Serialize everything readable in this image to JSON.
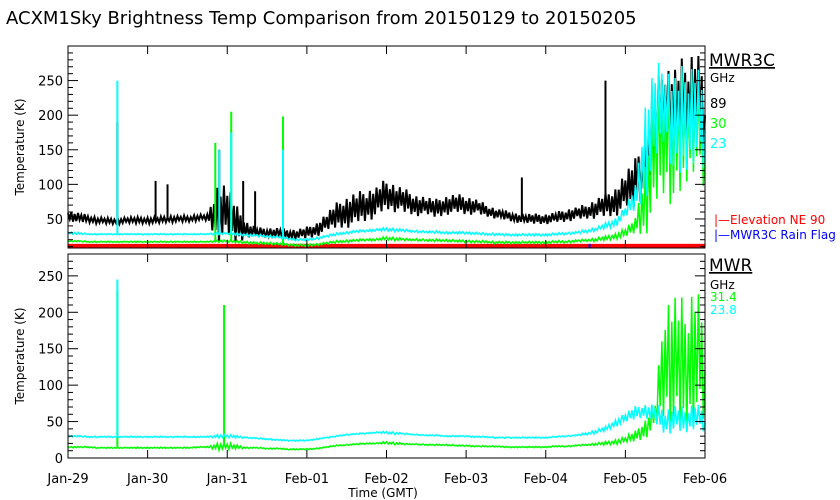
{
  "chart_data": [
    {
      "type": "line",
      "title": "ACXM1Sky Brightness Temp Comparison from 20150129 to 20150205",
      "panel": "top",
      "instrument": "MWR3C",
      "unit_label": "GHz",
      "ylabel": "Temperature (K)",
      "ylim": [
        8,
        300
      ],
      "yticks": [
        50,
        100,
        150,
        200,
        250
      ],
      "x_start_note": "x values are days since Jan-29 00:00 GMT, sampled every 3 hours",
      "x_step_days": 0.125,
      "series": [
        {
          "name": "89",
          "color": "#000000",
          "values": [
            55,
            52,
            50,
            48,
            47,
            47,
            48,
            48,
            48,
            48,
            50,
            50,
            50,
            52,
            52,
            60,
            60,
            40,
            35,
            30,
            30,
            30,
            28,
            28,
            30,
            35,
            45,
            55,
            60,
            65,
            70,
            75,
            85,
            80,
            75,
            70,
            68,
            65,
            70,
            72,
            70,
            68,
            62,
            58,
            55,
            52,
            50,
            50,
            50,
            52,
            55,
            58,
            60,
            65,
            70,
            75,
            90,
            100,
            130,
            180,
            220,
            200,
            210,
            230,
            200
          ],
          "spread": [
            8,
            8,
            6,
            5,
            5,
            5,
            5,
            5,
            5,
            5,
            5,
            5,
            5,
            5,
            5,
            50,
            45,
            30,
            12,
            8,
            8,
            8,
            8,
            8,
            10,
            12,
            15,
            20,
            25,
            25,
            25,
            25,
            25,
            22,
            20,
            18,
            15,
            15,
            15,
            15,
            15,
            12,
            10,
            8,
            8,
            8,
            8,
            8,
            8,
            8,
            10,
            10,
            12,
            15,
            20,
            25,
            30,
            40,
            50,
            70,
            60,
            80,
            80,
            80,
            80
          ],
          "spikes": [
            [
              0.62,
              190
            ],
            [
              1.1,
              105
            ],
            [
              1.25,
              100
            ],
            [
              1.9,
              150
            ],
            [
              2.2,
              105
            ],
            [
              2.35,
              90
            ],
            [
              5.7,
              110
            ],
            [
              6.75,
              250
            ]
          ]
        },
        {
          "name": "30",
          "color": "#00ff00",
          "values": [
            18,
            18,
            17,
            17,
            17,
            17,
            17,
            17,
            17,
            17,
            17,
            17,
            17,
            17,
            17,
            18,
            18,
            17,
            16,
            15,
            15,
            14,
            13,
            12,
            12,
            13,
            15,
            17,
            18,
            19,
            20,
            20,
            22,
            21,
            20,
            20,
            19,
            19,
            19,
            18,
            18,
            17,
            17,
            16,
            16,
            16,
            16,
            16,
            16,
            17,
            17,
            18,
            19,
            20,
            22,
            25,
            30,
            40,
            80,
            150,
            180,
            160,
            180,
            200,
            150
          ],
          "spread": [
            1,
            1,
            1,
            1,
            1,
            1,
            1,
            1,
            1,
            1,
            1,
            1,
            1,
            1,
            1,
            2,
            2,
            2,
            2,
            2,
            2,
            2,
            2,
            2,
            2,
            2,
            2,
            2,
            2,
            2,
            2,
            2,
            3,
            3,
            2,
            2,
            2,
            2,
            2,
            2,
            2,
            2,
            2,
            2,
            2,
            2,
            2,
            2,
            2,
            2,
            2,
            2,
            2,
            3,
            4,
            5,
            8,
            12,
            60,
            100,
            100,
            110,
            100,
            80,
            80
          ],
          "spikes": [
            [
              1.85,
              160
            ],
            [
              2.05,
              205
            ],
            [
              2.7,
              198
            ]
          ]
        },
        {
          "name": "23",
          "color": "#00ffff",
          "values": [
            30,
            29,
            28,
            28,
            28,
            28,
            28,
            28,
            28,
            28,
            28,
            28,
            28,
            28,
            28,
            29,
            29,
            28,
            27,
            26,
            25,
            24,
            22,
            20,
            20,
            22,
            25,
            28,
            30,
            32,
            33,
            34,
            35,
            34,
            33,
            32,
            31,
            31,
            30,
            30,
            30,
            29,
            28,
            28,
            27,
            27,
            27,
            27,
            27,
            28,
            29,
            30,
            32,
            35,
            40,
            45,
            60,
            80,
            150,
            200,
            220,
            180,
            190,
            210,
            180
          ],
          "spread": [
            2,
            2,
            1,
            1,
            1,
            1,
            1,
            1,
            1,
            1,
            1,
            1,
            1,
            1,
            1,
            2,
            2,
            2,
            2,
            2,
            2,
            2,
            2,
            2,
            2,
            2,
            2,
            2,
            2,
            2,
            2,
            2,
            3,
            3,
            2,
            2,
            2,
            2,
            2,
            2,
            2,
            2,
            2,
            2,
            2,
            2,
            2,
            2,
            2,
            2,
            2,
            2,
            3,
            3,
            5,
            8,
            10,
            20,
            80,
            80,
            60,
            90,
            90,
            80,
            80
          ],
          "spikes": [
            [
              0.62,
              250
            ],
            [
              1.9,
              150
            ],
            [
              2.05,
              175
            ],
            [
              2.7,
              150
            ]
          ]
        }
      ],
      "markers": [
        {
          "name": "Elevation NE 90",
          "color": "#ff0000",
          "legend": "|—Elevation NE 90",
          "range": [
            8,
            14
          ]
        },
        {
          "name": "MWR3C Rain Flag",
          "color": "#0000ff",
          "legend": "|—MWR3C Rain Flag",
          "days": [
            6.55
          ]
        }
      ]
    },
    {
      "type": "line",
      "panel": "bottom",
      "instrument": "MWR",
      "unit_label": "GHz",
      "ylabel": "Temperature (K)",
      "ylim": [
        0,
        280
      ],
      "yticks": [
        0,
        50,
        100,
        150,
        200,
        250
      ],
      "x_step_days": 0.125,
      "series": [
        {
          "name": "31.4",
          "color": "#00ff00",
          "values": [
            15,
            15,
            15,
            14,
            14,
            14,
            14,
            14,
            14,
            14,
            14,
            14,
            14,
            15,
            15,
            16,
            16,
            15,
            14,
            14,
            13,
            13,
            12,
            12,
            12,
            13,
            15,
            17,
            18,
            19,
            20,
            20,
            21,
            20,
            19,
            19,
            18,
            18,
            18,
            17,
            17,
            16,
            16,
            16,
            15,
            15,
            15,
            15,
            15,
            16,
            16,
            17,
            18,
            19,
            20,
            22,
            25,
            30,
            40,
            60,
            140,
            130,
            120,
            150,
            120
          ],
          "spread": [
            1,
            1,
            1,
            1,
            1,
            1,
            1,
            1,
            1,
            1,
            1,
            1,
            1,
            1,
            1,
            6,
            6,
            3,
            1,
            1,
            1,
            1,
            1,
            1,
            1,
            1,
            1,
            1,
            1,
            1,
            1,
            1,
            2,
            2,
            1,
            1,
            1,
            1,
            1,
            1,
            1,
            1,
            1,
            1,
            1,
            1,
            1,
            1,
            1,
            1,
            1,
            1,
            1,
            2,
            3,
            4,
            5,
            8,
            15,
            20,
            90,
            110,
            100,
            110,
            90
          ],
          "spikes": [
            [
              0.62,
              230
            ],
            [
              1.96,
              210
            ]
          ]
        },
        {
          "name": "23.8",
          "color": "#00ffff",
          "values": [
            30,
            30,
            29,
            29,
            29,
            29,
            29,
            29,
            29,
            29,
            29,
            29,
            29,
            29,
            29,
            30,
            30,
            29,
            28,
            27,
            26,
            25,
            24,
            24,
            24,
            26,
            28,
            30,
            32,
            33,
            34,
            35,
            35,
            34,
            33,
            32,
            31,
            31,
            30,
            30,
            30,
            29,
            29,
            28,
            28,
            28,
            28,
            28,
            28,
            29,
            30,
            31,
            33,
            36,
            40,
            48,
            55,
            62,
            65,
            60,
            50,
            55,
            50,
            60,
            50
          ],
          "spread": [
            1,
            1,
            1,
            1,
            1,
            1,
            1,
            1,
            1,
            1,
            1,
            1,
            1,
            1,
            1,
            3,
            3,
            2,
            1,
            1,
            1,
            1,
            1,
            1,
            1,
            1,
            1,
            1,
            1,
            1,
            1,
            1,
            2,
            2,
            1,
            1,
            1,
            1,
            1,
            1,
            1,
            1,
            1,
            1,
            1,
            1,
            1,
            1,
            1,
            1,
            1,
            1,
            2,
            3,
            4,
            6,
            8,
            10,
            10,
            15,
            20,
            20,
            20,
            20,
            20
          ],
          "spikes": [
            [
              0.62,
              245
            ]
          ]
        }
      ]
    }
  ],
  "x_axis": {
    "label": "Time (GMT)",
    "tick_labels": [
      "Jan-29",
      "Jan-30",
      "Jan-31",
      "Feb-01",
      "Feb-02",
      "Feb-03",
      "Feb-04",
      "Feb-05",
      "Feb-06"
    ]
  },
  "legend_top": {
    "title": "MWR3C",
    "unit": "GHz",
    "items": [
      "89",
      "30",
      "23"
    ]
  },
  "legend_bottom": {
    "title": "MWR",
    "unit": "GHz",
    "items": [
      "31.4",
      "23.8"
    ]
  }
}
